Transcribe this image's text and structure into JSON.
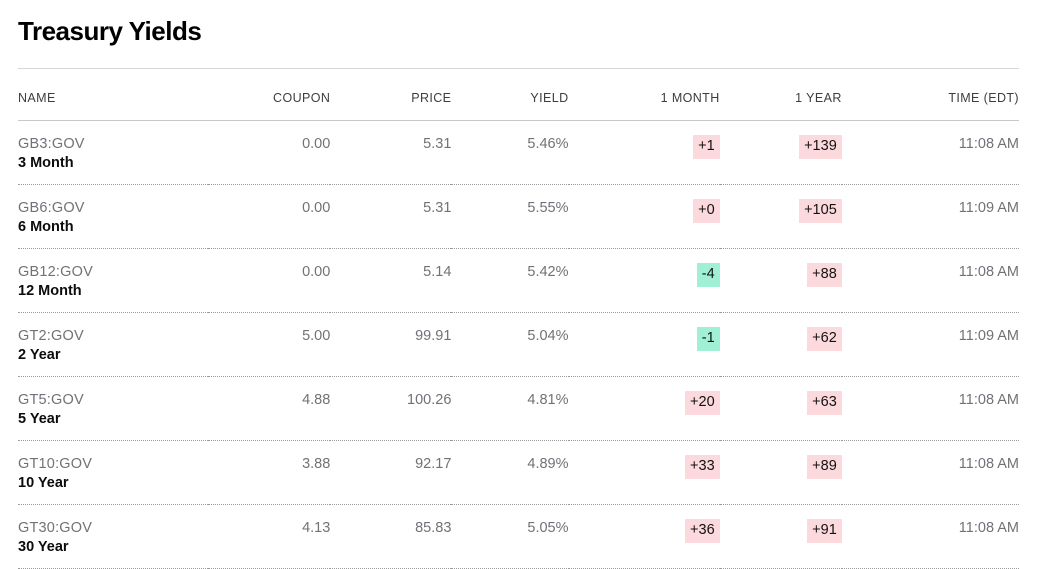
{
  "page": {
    "title": "Treasury Yields"
  },
  "colors": {
    "up_badge_bg": "#fcd9dc",
    "down_badge_bg": "#9ff0d5",
    "badge_text": "#121212"
  },
  "table": {
    "columns": [
      "NAME",
      "COUPON",
      "PRICE",
      "YIELD",
      "1 MONTH",
      "1 YEAR",
      "TIME (EDT)"
    ],
    "rows": [
      {
        "ticker": "GB3:GOV",
        "name": "3 Month",
        "coupon": "0.00",
        "price": "5.31",
        "yield": "5.46%",
        "one_month": "+1",
        "one_month_dir": "up",
        "one_year": "+139",
        "one_year_dir": "up",
        "time": "11:08 AM"
      },
      {
        "ticker": "GB6:GOV",
        "name": "6 Month",
        "coupon": "0.00",
        "price": "5.31",
        "yield": "5.55%",
        "one_month": "+0",
        "one_month_dir": "up",
        "one_year": "+105",
        "one_year_dir": "up",
        "time": "11:09 AM"
      },
      {
        "ticker": "GB12:GOV",
        "name": "12 Month",
        "coupon": "0.00",
        "price": "5.14",
        "yield": "5.42%",
        "one_month": "-4",
        "one_month_dir": "down",
        "one_year": "+88",
        "one_year_dir": "up",
        "time": "11:08 AM"
      },
      {
        "ticker": "GT2:GOV",
        "name": "2 Year",
        "coupon": "5.00",
        "price": "99.91",
        "yield": "5.04%",
        "one_month": "-1",
        "one_month_dir": "down",
        "one_year": "+62",
        "one_year_dir": "up",
        "time": "11:09 AM"
      },
      {
        "ticker": "GT5:GOV",
        "name": "5 Year",
        "coupon": "4.88",
        "price": "100.26",
        "yield": "4.81%",
        "one_month": "+20",
        "one_month_dir": "up",
        "one_year": "+63",
        "one_year_dir": "up",
        "time": "11:08 AM"
      },
      {
        "ticker": "GT10:GOV",
        "name": "10 Year",
        "coupon": "3.88",
        "price": "92.17",
        "yield": "4.89%",
        "one_month": "+33",
        "one_month_dir": "up",
        "one_year": "+89",
        "one_year_dir": "up",
        "time": "11:08 AM"
      },
      {
        "ticker": "GT30:GOV",
        "name": "30 Year",
        "coupon": "4.13",
        "price": "85.83",
        "yield": "5.05%",
        "one_month": "+36",
        "one_month_dir": "up",
        "one_year": "+91",
        "one_year_dir": "up",
        "time": "11:08 AM"
      }
    ]
  }
}
